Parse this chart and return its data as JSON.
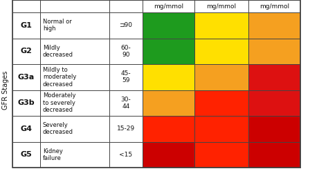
{
  "stages": [
    "G1",
    "G2",
    "G3a",
    "G3b",
    "G4",
    "G5"
  ],
  "descriptions": [
    "Normal or\nhigh",
    "Mildly\ndecreased",
    "Mildly to\nmoderately\ndecreased",
    "Moderately\nto severely\ndecreased",
    "Severely\ndecreased",
    "Kidney\nfailure"
  ],
  "gfr_ranges": [
    "⊐90",
    "60-\n90",
    "45-\n59",
    "30-\n44",
    "15-29",
    "<15"
  ],
  "col_headers": [
    "mg/mmol",
    "mg/mmol",
    "mg/mmol"
  ],
  "colors": [
    [
      "#1E9B1E",
      "#FFE000",
      "#F5A020"
    ],
    [
      "#1E9B1E",
      "#FFE000",
      "#F5A020"
    ],
    [
      "#FFE000",
      "#F5A020",
      "#DD1111"
    ],
    [
      "#F5A020",
      "#FF2200",
      "#DD1111"
    ],
    [
      "#FF2200",
      "#FF2200",
      "#CC0000"
    ],
    [
      "#CC0000",
      "#FF2200",
      "#CC0000"
    ]
  ],
  "ylabel": "GFR Stages",
  "bg_color": "#FFFFFF",
  "border_color": "#444444",
  "text_color": "#111111",
  "header_bg": "#FFFFFF",
  "stage_fontsize": 8,
  "desc_fontsize": 6,
  "gfr_fontsize": 6.5,
  "header_fontsize": 6.5,
  "ylabel_fontsize": 7
}
